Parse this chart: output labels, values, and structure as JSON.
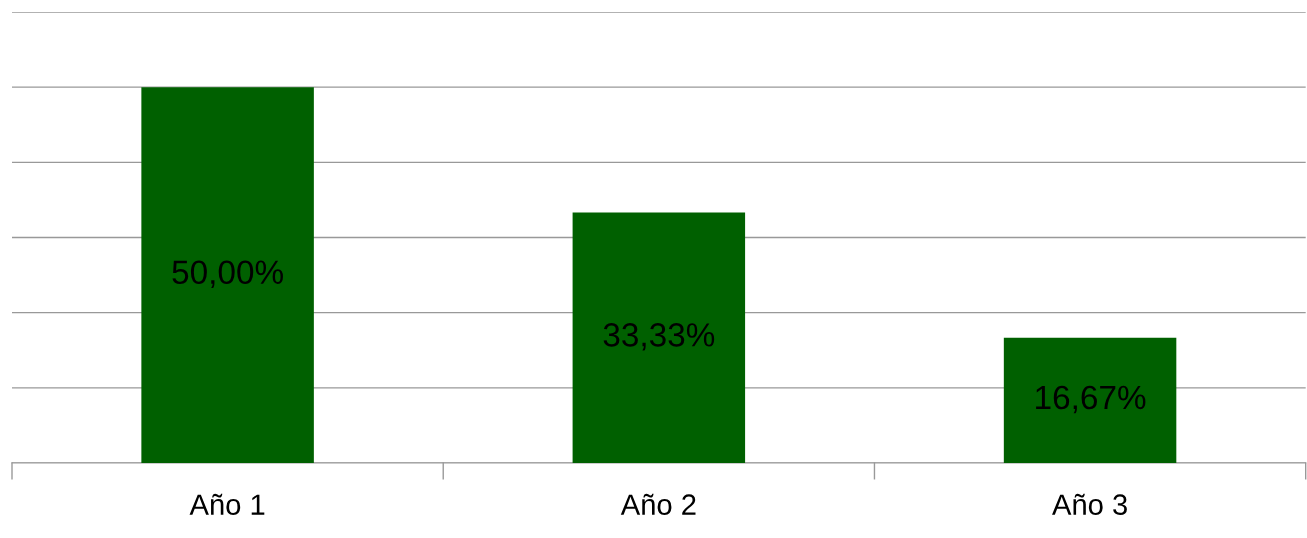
{
  "chart_data": {
    "type": "bar",
    "categories": [
      "Año 1",
      "Año 2",
      "Año 3"
    ],
    "values": [
      50,
      33.33,
      16.67
    ],
    "color": "#006000",
    "value_labels": [
      "50,00%",
      "33,33%",
      "16,67%"
    ],
    "ylim": [
      0,
      60
    ],
    "yticks": [
      {
        "value": 0,
        "label": null
      },
      {
        "value": 10,
        "label": null
      },
      {
        "value": 20,
        "label": null
      },
      {
        "value": 30,
        "label": null
      },
      {
        "value": 40,
        "label": null
      },
      {
        "value": 50,
        "label": null
      },
      {
        "value": 60,
        "label": null
      }
    ],
    "grid": "y",
    "tick_labels": "x",
    "legend": false
  }
}
